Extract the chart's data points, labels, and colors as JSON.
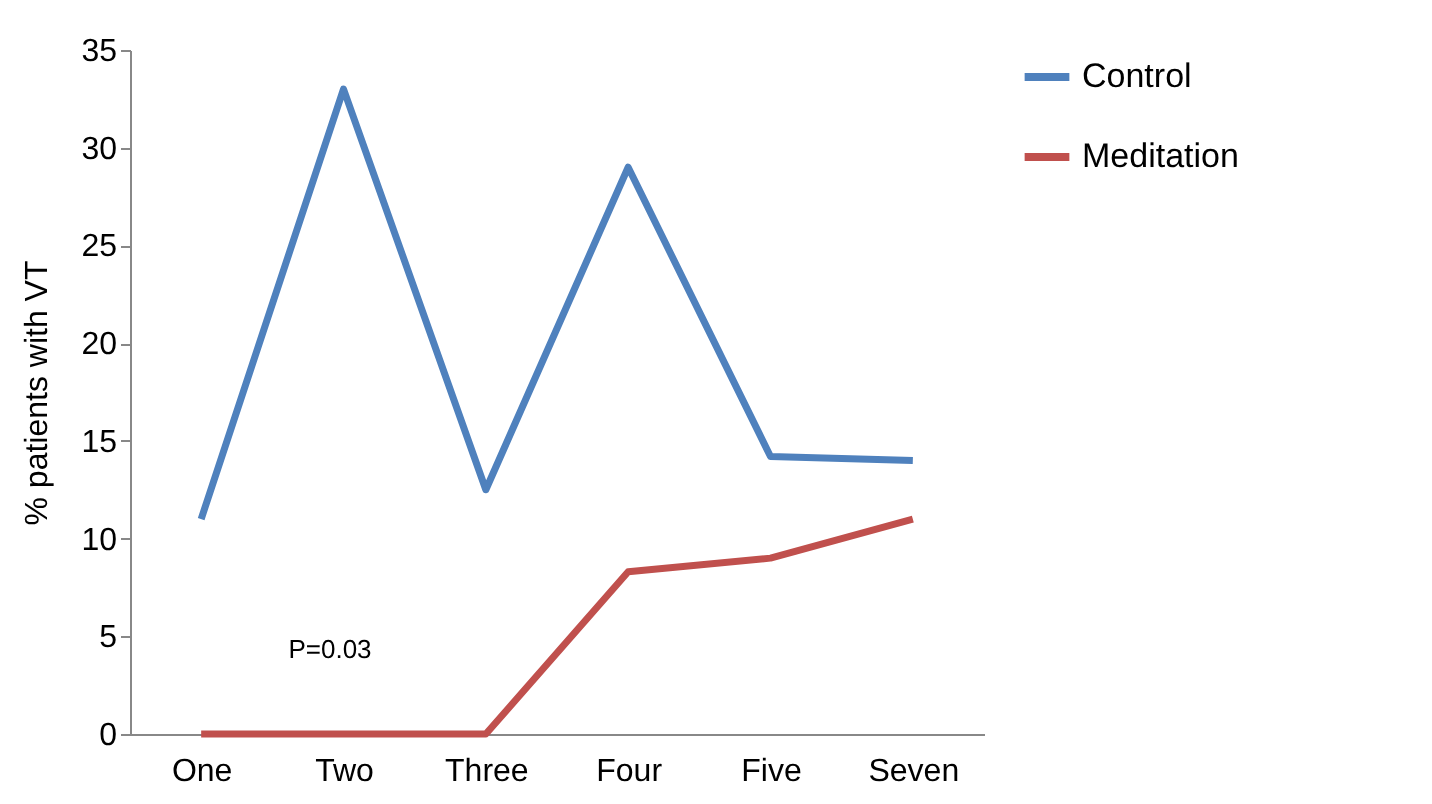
{
  "chart_data": {
    "type": "line",
    "ylabel": "% patients with VT",
    "categories": [
      "One",
      "Two",
      "Three",
      "Four",
      "Five",
      "Seven"
    ],
    "series": [
      {
        "name": "Control",
        "color": "#4f81bd",
        "values": [
          11,
          33,
          12.5,
          29,
          14.2,
          14
        ]
      },
      {
        "name": "Meditation",
        "color": "#c0504d",
        "values": [
          0,
          0,
          0,
          8.3,
          9,
          11
        ]
      }
    ],
    "ylim": [
      0,
      35
    ],
    "yticks": [
      0,
      5,
      10,
      15,
      20,
      25,
      30,
      35
    ],
    "grid": false,
    "legend": "right",
    "marker": "none",
    "line_style": "solid",
    "annotations": [
      "P=0.03"
    ]
  }
}
